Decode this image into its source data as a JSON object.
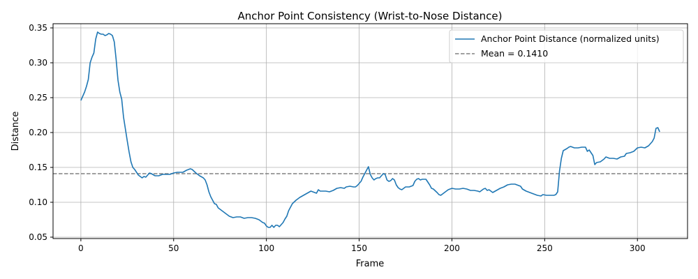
{
  "chart_data": {
    "type": "line",
    "title": "Anchor Point Consistency (Wrist-to-Nose Distance)",
    "xlabel": "Frame",
    "ylabel": "Distance",
    "xlim": [
      -15,
      327
    ],
    "ylim": [
      0.048,
      0.356
    ],
    "xticks": [
      0,
      50,
      100,
      150,
      200,
      250,
      300
    ],
    "yticks": [
      0.05,
      0.1,
      0.15,
      0.2,
      0.25,
      0.3,
      0.35
    ],
    "xtick_labels": [
      "0",
      "50",
      "100",
      "150",
      "200",
      "250",
      "300"
    ],
    "ytick_labels": [
      "0.05",
      "0.10",
      "0.15",
      "0.20",
      "0.25",
      "0.30",
      "0.35"
    ],
    "grid": true,
    "legend_position": "top-right",
    "series": [
      {
        "name": "Anchor Point Distance (normalized units)",
        "color": "#1f77b4",
        "points": [
          [
            0,
            0.246
          ],
          [
            1,
            0.252
          ],
          [
            2,
            0.258
          ],
          [
            3,
            0.266
          ],
          [
            4,
            0.276
          ],
          [
            5,
            0.3
          ],
          [
            6,
            0.308
          ],
          [
            7,
            0.314
          ],
          [
            8,
            0.334
          ],
          [
            9,
            0.344
          ],
          [
            10,
            0.342
          ],
          [
            11,
            0.341
          ],
          [
            12,
            0.341
          ],
          [
            13,
            0.339
          ],
          [
            14,
            0.34
          ],
          [
            15,
            0.342
          ],
          [
            16,
            0.341
          ],
          [
            17,
            0.339
          ],
          [
            18,
            0.33
          ],
          [
            19,
            0.305
          ],
          [
            20,
            0.275
          ],
          [
            21,
            0.258
          ],
          [
            22,
            0.248
          ],
          [
            23,
            0.222
          ],
          [
            24,
            0.205
          ],
          [
            25,
            0.188
          ],
          [
            26,
            0.172
          ],
          [
            27,
            0.158
          ],
          [
            28,
            0.15
          ],
          [
            29,
            0.147
          ],
          [
            30,
            0.143
          ],
          [
            31,
            0.139
          ],
          [
            32,
            0.137
          ],
          [
            33,
            0.135
          ],
          [
            34,
            0.137
          ],
          [
            35,
            0.136
          ],
          [
            36,
            0.139
          ],
          [
            37,
            0.142
          ],
          [
            38,
            0.141
          ],
          [
            40,
            0.138
          ],
          [
            42,
            0.138
          ],
          [
            44,
            0.14
          ],
          [
            46,
            0.14
          ],
          [
            48,
            0.14
          ],
          [
            50,
            0.142
          ],
          [
            52,
            0.143
          ],
          [
            55,
            0.143
          ],
          [
            57,
            0.146
          ],
          [
            59,
            0.148
          ],
          [
            60,
            0.147
          ],
          [
            62,
            0.142
          ],
          [
            64,
            0.138
          ],
          [
            66,
            0.135
          ],
          [
            67,
            0.132
          ],
          [
            68,
            0.125
          ],
          [
            69,
            0.115
          ],
          [
            70,
            0.108
          ],
          [
            72,
            0.098
          ],
          [
            73,
            0.097
          ],
          [
            74,
            0.092
          ],
          [
            76,
            0.088
          ],
          [
            78,
            0.084
          ],
          [
            80,
            0.08
          ],
          [
            82,
            0.078
          ],
          [
            84,
            0.079
          ],
          [
            86,
            0.079
          ],
          [
            88,
            0.077
          ],
          [
            90,
            0.078
          ],
          [
            92,
            0.078
          ],
          [
            94,
            0.077
          ],
          [
            96,
            0.075
          ],
          [
            98,
            0.071
          ],
          [
            99,
            0.07
          ],
          [
            100,
            0.066
          ],
          [
            101,
            0.064
          ],
          [
            102,
            0.064
          ],
          [
            103,
            0.067
          ],
          [
            104,
            0.064
          ],
          [
            105,
            0.067
          ],
          [
            106,
            0.067
          ],
          [
            107,
            0.065
          ],
          [
            108,
            0.068
          ],
          [
            109,
            0.071
          ],
          [
            110,
            0.076
          ],
          [
            111,
            0.08
          ],
          [
            112,
            0.088
          ],
          [
            113,
            0.093
          ],
          [
            114,
            0.098
          ],
          [
            116,
            0.103
          ],
          [
            118,
            0.107
          ],
          [
            120,
            0.11
          ],
          [
            122,
            0.113
          ],
          [
            124,
            0.116
          ],
          [
            126,
            0.114
          ],
          [
            127,
            0.113
          ],
          [
            128,
            0.118
          ],
          [
            129,
            0.116
          ],
          [
            130,
            0.116
          ],
          [
            132,
            0.116
          ],
          [
            134,
            0.115
          ],
          [
            136,
            0.117
          ],
          [
            138,
            0.12
          ],
          [
            140,
            0.121
          ],
          [
            142,
            0.12
          ],
          [
            143,
            0.122
          ],
          [
            145,
            0.123
          ],
          [
            147,
            0.122
          ],
          [
            148,
            0.122
          ],
          [
            149,
            0.124
          ],
          [
            150,
            0.127
          ],
          [
            151,
            0.13
          ],
          [
            152,
            0.136
          ],
          [
            153,
            0.141
          ],
          [
            154,
            0.146
          ],
          [
            155,
            0.151
          ],
          [
            156,
            0.14
          ],
          [
            157,
            0.135
          ],
          [
            158,
            0.132
          ],
          [
            159,
            0.134
          ],
          [
            160,
            0.135
          ],
          [
            161,
            0.135
          ],
          [
            162,
            0.138
          ],
          [
            163,
            0.141
          ],
          [
            164,
            0.14
          ],
          [
            165,
            0.132
          ],
          [
            166,
            0.13
          ],
          [
            167,
            0.131
          ],
          [
            168,
            0.134
          ],
          [
            169,
            0.132
          ],
          [
            170,
            0.125
          ],
          [
            171,
            0.121
          ],
          [
            172,
            0.119
          ],
          [
            173,
            0.118
          ],
          [
            174,
            0.12
          ],
          [
            175,
            0.122
          ],
          [
            177,
            0.122
          ],
          [
            179,
            0.124
          ],
          [
            180,
            0.13
          ],
          [
            181,
            0.133
          ],
          [
            182,
            0.134
          ],
          [
            183,
            0.132
          ],
          [
            184,
            0.133
          ],
          [
            186,
            0.133
          ],
          [
            188,
            0.125
          ],
          [
            189,
            0.12
          ],
          [
            190,
            0.119
          ],
          [
            192,
            0.114
          ],
          [
            193,
            0.111
          ],
          [
            194,
            0.11
          ],
          [
            196,
            0.114
          ],
          [
            198,
            0.118
          ],
          [
            200,
            0.12
          ],
          [
            202,
            0.119
          ],
          [
            204,
            0.119
          ],
          [
            206,
            0.12
          ],
          [
            208,
            0.119
          ],
          [
            210,
            0.117
          ],
          [
            212,
            0.117
          ],
          [
            214,
            0.116
          ],
          [
            215,
            0.115
          ],
          [
            217,
            0.119
          ],
          [
            218,
            0.12
          ],
          [
            219,
            0.117
          ],
          [
            220,
            0.118
          ],
          [
            222,
            0.114
          ],
          [
            224,
            0.117
          ],
          [
            226,
            0.12
          ],
          [
            228,
            0.122
          ],
          [
            230,
            0.125
          ],
          [
            232,
            0.126
          ],
          [
            234,
            0.126
          ],
          [
            236,
            0.124
          ],
          [
            237,
            0.123
          ],
          [
            238,
            0.119
          ],
          [
            240,
            0.116
          ],
          [
            242,
            0.114
          ],
          [
            244,
            0.112
          ],
          [
            246,
            0.11
          ],
          [
            248,
            0.109
          ],
          [
            249,
            0.111
          ],
          [
            251,
            0.11
          ],
          [
            253,
            0.11
          ],
          [
            255,
            0.11
          ],
          [
            256,
            0.111
          ],
          [
            257,
            0.115
          ],
          [
            258,
            0.145
          ],
          [
            259,
            0.163
          ],
          [
            260,
            0.174
          ],
          [
            262,
            0.177
          ],
          [
            263,
            0.179
          ],
          [
            264,
            0.18
          ],
          [
            266,
            0.178
          ],
          [
            268,
            0.178
          ],
          [
            270,
            0.179
          ],
          [
            272,
            0.179
          ],
          [
            273,
            0.173
          ],
          [
            274,
            0.175
          ],
          [
            276,
            0.167
          ],
          [
            277,
            0.154
          ],
          [
            278,
            0.157
          ],
          [
            280,
            0.158
          ],
          [
            282,
            0.162
          ],
          [
            283,
            0.165
          ],
          [
            285,
            0.163
          ],
          [
            287,
            0.163
          ],
          [
            289,
            0.162
          ],
          [
            291,
            0.165
          ],
          [
            293,
            0.166
          ],
          [
            294,
            0.17
          ],
          [
            296,
            0.171
          ],
          [
            298,
            0.173
          ],
          [
            300,
            0.178
          ],
          [
            302,
            0.179
          ],
          [
            304,
            0.178
          ],
          [
            306,
            0.181
          ],
          [
            308,
            0.187
          ],
          [
            309,
            0.192
          ],
          [
            310,
            0.206
          ],
          [
            311,
            0.207
          ],
          [
            312,
            0.201
          ]
        ]
      },
      {
        "name": "Mean = 0.1410",
        "color": "#808080",
        "style": "dashed",
        "y": 0.141
      }
    ]
  }
}
